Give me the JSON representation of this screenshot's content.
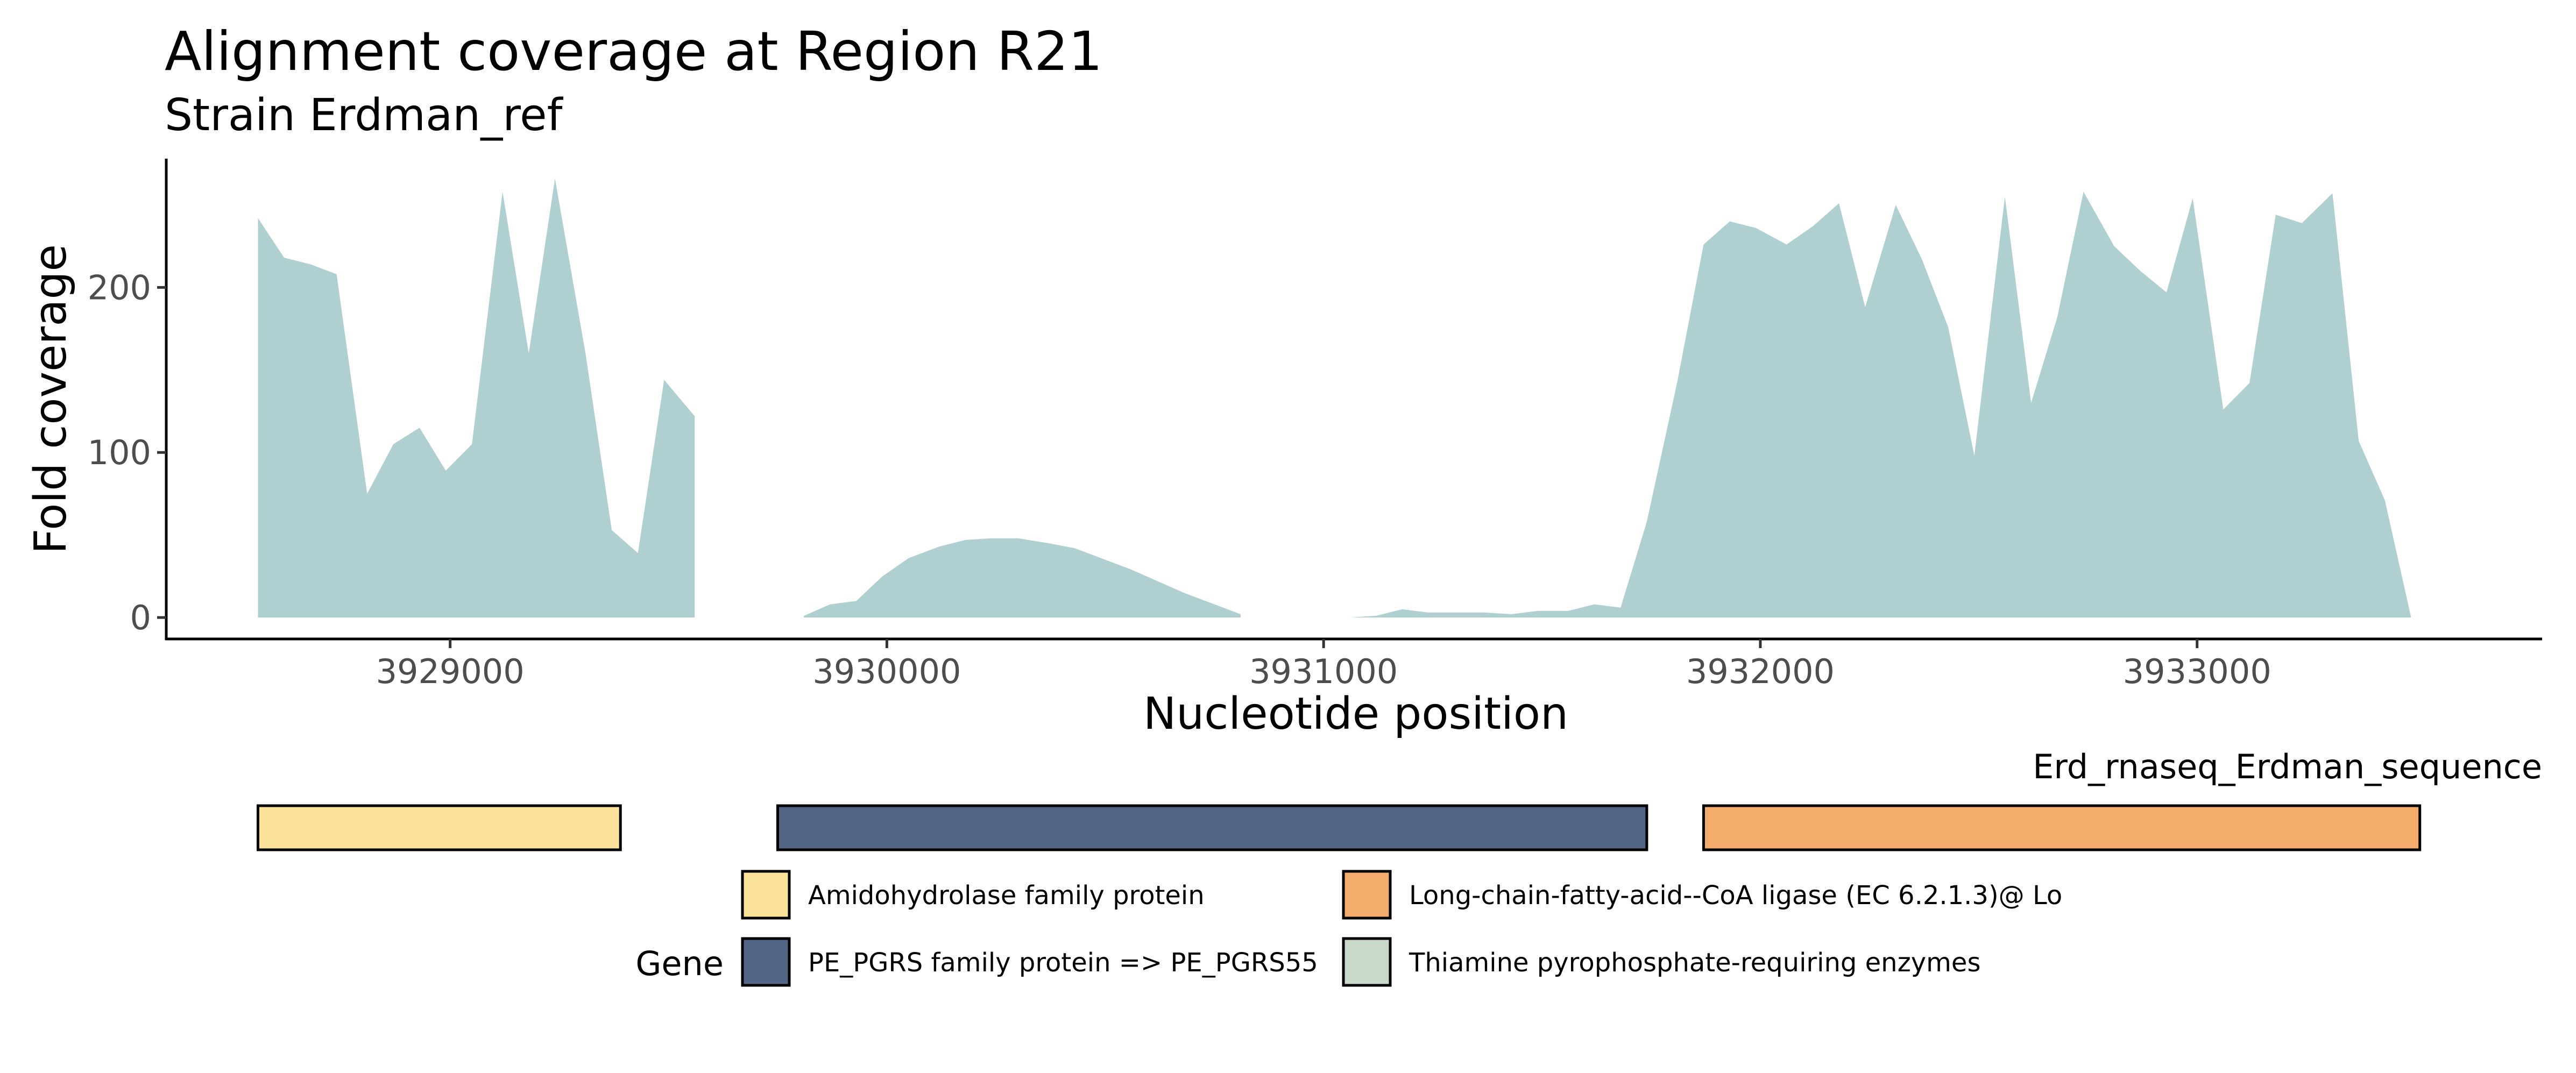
{
  "chart_data": {
    "type": "area",
    "title": "Alignment coverage at Region R21",
    "subtitle": "Strain Erdman_ref",
    "xlabel": "Nucleotide position",
    "ylabel": "Fold coverage",
    "xlim": [
      3928350,
      3933790
    ],
    "ylim": [
      -13,
      278
    ],
    "x_ticks": [
      3929000,
      3930000,
      3931000,
      3932000,
      3933000
    ],
    "x_tick_labels": [
      "3929000",
      "3930000",
      "3931000",
      "3932000",
      "3933000"
    ],
    "y_ticks": [
      0,
      100,
      200
    ],
    "y_tick_labels": [
      "0",
      "100",
      "200"
    ],
    "fill_color": "#b0cfd1",
    "grid": false,
    "series": [
      {
        "name": "coverage",
        "segments": [
          [
            [
              3928560,
              242
            ],
            [
              3928620,
              218
            ],
            [
              3928680,
              214
            ],
            [
              3928740,
              208
            ],
            [
              3928810,
              75
            ],
            [
              3928870,
              105
            ],
            [
              3928930,
              115
            ],
            [
              3928990,
              89
            ],
            [
              3929050,
              105
            ],
            [
              3929120,
              258
            ],
            [
              3929180,
              160
            ],
            [
              3929240,
              266
            ],
            [
              3929310,
              160
            ],
            [
              3929370,
              53
            ],
            [
              3929430,
              39
            ],
            [
              3929490,
              144
            ],
            [
              3929560,
              122
            ]
          ],
          [
            [
              3929810,
              1
            ],
            [
              3929870,
              8
            ],
            [
              3929930,
              10
            ],
            [
              3929990,
              25
            ],
            [
              3930050,
              36
            ],
            [
              3930120,
              43
            ],
            [
              3930180,
              47
            ],
            [
              3930240,
              48
            ],
            [
              3930300,
              48
            ],
            [
              3930370,
              45
            ],
            [
              3930430,
              42
            ],
            [
              3930490,
              36
            ],
            [
              3930560,
              29
            ],
            [
              3930620,
              22
            ],
            [
              3930680,
              15
            ],
            [
              3930740,
              9
            ],
            [
              3930810,
              2
            ]
          ],
          [
            [
              3931060,
              0
            ],
            [
              3931120,
              1
            ],
            [
              3931180,
              5
            ],
            [
              3931240,
              3
            ],
            [
              3931310,
              3
            ],
            [
              3931370,
              3
            ],
            [
              3931430,
              2
            ],
            [
              3931490,
              4
            ],
            [
              3931560,
              4
            ],
            [
              3931620,
              8
            ],
            [
              3931680,
              6
            ],
            [
              3931740,
              58
            ],
            [
              3931810,
              143
            ],
            [
              3931870,
              226
            ],
            [
              3931930,
              240
            ],
            [
              3931990,
              236
            ],
            [
              3932060,
              226
            ],
            [
              3932120,
              237
            ],
            [
              3932180,
              251
            ],
            [
              3932240,
              188
            ],
            [
              3932310,
              250
            ],
            [
              3932370,
              217
            ],
            [
              3932430,
              176
            ],
            [
              3932490,
              98
            ],
            [
              3932560,
              255
            ],
            [
              3932620,
              130
            ],
            [
              3932680,
              182
            ],
            [
              3932740,
              258
            ],
            [
              3932810,
              225
            ],
            [
              3932870,
              210
            ],
            [
              3932930,
              197
            ],
            [
              3932990,
              254
            ],
            [
              3933060,
              126
            ],
            [
              3933120,
              142
            ],
            [
              3933180,
              244
            ],
            [
              3933240,
              239
            ],
            [
              3933310,
              257
            ],
            [
              3933370,
              107
            ],
            [
              3933430,
              71
            ],
            [
              3933490,
              0
            ]
          ]
        ]
      }
    ],
    "gene_track": {
      "label": "Erd_rnaseq_Erdman_sequence",
      "genes": [
        {
          "name": "Amidohydrolase family protein",
          "start": 3928560,
          "end": 3929390,
          "color": "#fbe29a"
        },
        {
          "name": "PE_PGRS family protein => PE_PGRS55",
          "start": 3929750,
          "end": 3931740,
          "color": "#526585"
        },
        {
          "name": "Long-chain-fatty-acid--CoA ligase (EC 6.2.1.3)@ Lo",
          "start": 3931870,
          "end": 3933510,
          "color": "#f3ac6c"
        }
      ]
    },
    "legend": {
      "title": "Gene",
      "placement": "bottom",
      "entries": [
        {
          "label": "Amidohydrolase family protein",
          "color": "#fbe29a"
        },
        {
          "label": "PE_PGRS family protein => PE_PGRS55",
          "color": "#526585"
        },
        {
          "label": "Long-chain-fatty-acid--CoA ligase (EC 6.2.1.3)@ Lo",
          "color": "#f3ac6c"
        },
        {
          "label": "Thiamine pyrophosphate-requiring enzymes",
          "color": "#c7d9c8"
        }
      ]
    }
  }
}
